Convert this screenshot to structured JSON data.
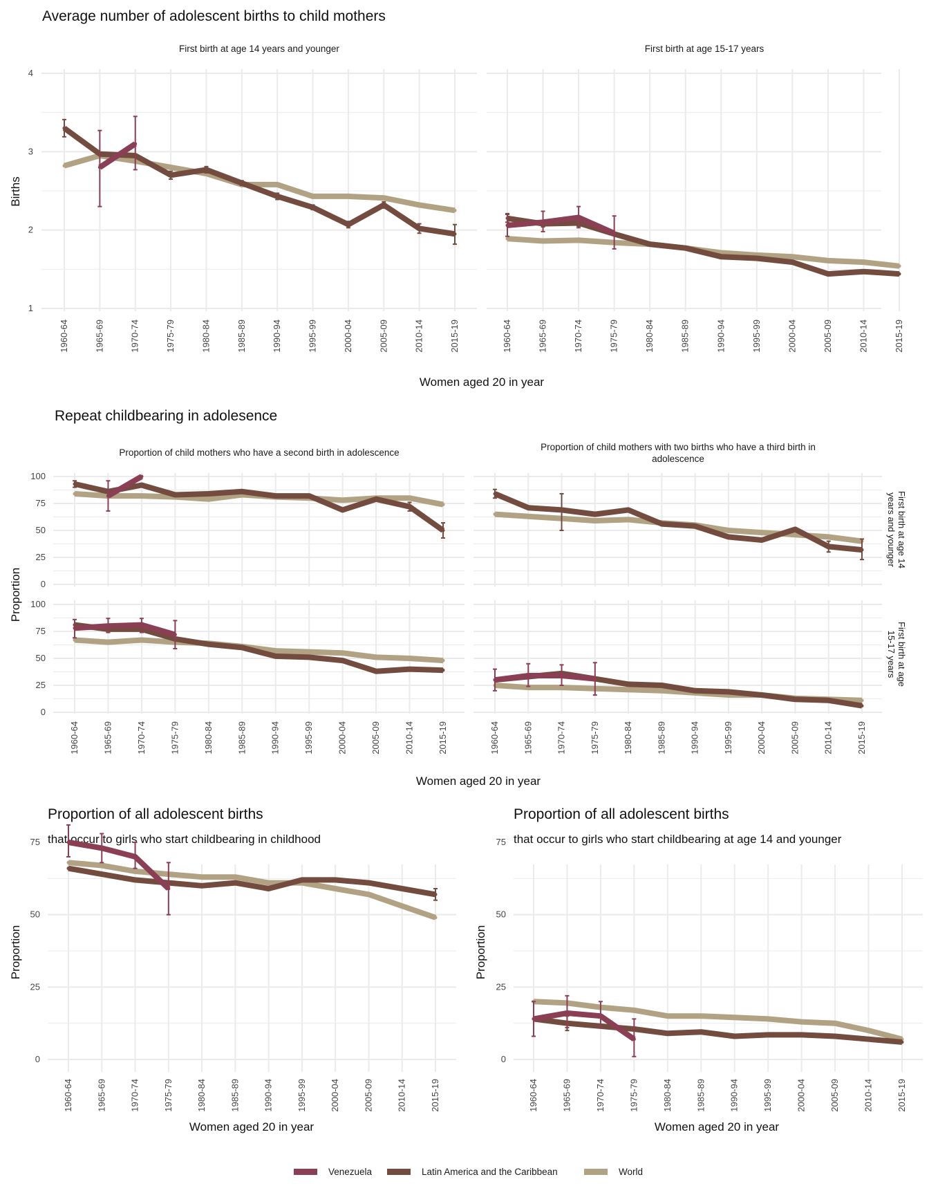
{
  "colors": {
    "Venezuela": "#8b3f55",
    "Latin America and the Caribbean": "#734c3f",
    "World": "#b1a283"
  },
  "legend": {
    "items": [
      "Venezuela",
      "Latin America and the Caribbean",
      "World"
    ]
  },
  "section1": {
    "title": "Average number of adolescent births to child mothers",
    "panels": [
      "First birth at age 14 years and younger",
      "First birth at age 15-17 years"
    ],
    "ylabel": "Births",
    "xlabel": "Women aged 20 in year"
  },
  "section2": {
    "title": "Repeat childbearing in adolesence",
    "cols": [
      "Proportion of child mothers who have a second birth in adolescence",
      "Proportion of child mothers with two births who have a third birth in",
      "adolescence"
    ],
    "rows": [
      "First birth at age 14",
      "years and younger",
      "First birth at age",
      "15-17 years"
    ],
    "ylabel": "Proportion",
    "xlabel": "Women aged 20 in year"
  },
  "section3": {
    "left_title": "Proportion of all adolescent births",
    "left_subtitle": "that occur to girls who start childbearing in childhood",
    "right_title": "Proportion of all adolescent births",
    "right_subtitle": "that occur to girls who start childbearing at age 14 and younger",
    "ylabel": "Proportion",
    "xlabel": "Women aged 20 in year"
  },
  "chart_data": [
    {
      "type": "line",
      "title": "Average number of adolescent births to child mothers",
      "panel": "First birth at age 14 years and younger",
      "categories": [
        "1960-64",
        "1965-69",
        "1970-74",
        "1975-79",
        "1980-84",
        "1985-89",
        "1990-94",
        "1995-99",
        "2000-04",
        "2005-09",
        "2010-14",
        "2015-19"
      ],
      "ylim": [
        1,
        4
      ],
      "yticks": [
        1,
        2,
        3,
        4
      ],
      "series": [
        {
          "name": "World",
          "values": [
            2.82,
            2.95,
            2.88,
            2.8,
            2.72,
            2.58,
            2.58,
            2.43,
            2.43,
            2.41,
            2.32,
            2.25
          ]
        },
        {
          "name": "Latin America and the Caribbean",
          "values": [
            3.3,
            2.97,
            2.95,
            2.7,
            2.77,
            2.6,
            2.43,
            2.29,
            2.07,
            2.32,
            2.02,
            1.95
          ],
          "err": [
            [
              3.19,
              3.41
            ],
            null,
            null,
            [
              2.65,
              2.75
            ],
            [
              2.73,
              2.81
            ],
            [
              2.57,
              2.63
            ],
            [
              2.39,
              2.47
            ],
            [
              2.26,
              2.32
            ],
            [
              2.03,
              2.11
            ],
            [
              2.28,
              2.36
            ],
            [
              1.96,
              2.08
            ],
            [
              1.82,
              2.07
            ]
          ]
        },
        {
          "name": "Venezuela",
          "values": [
            null,
            2.8,
            3.1,
            null,
            null,
            null,
            null,
            null,
            null,
            null,
            null,
            null
          ],
          "err": [
            null,
            [
              2.3,
              3.27
            ],
            [
              2.77,
              3.45
            ],
            null,
            null,
            null,
            null,
            null,
            null,
            null,
            null,
            null
          ]
        }
      ]
    },
    {
      "type": "line",
      "title": "Average number of adolescent births to child mothers",
      "panel": "First birth at age 15-17 years",
      "categories": [
        "1960-64",
        "1965-69",
        "1970-74",
        "1975-79",
        "1980-84",
        "1985-89",
        "1990-94",
        "1995-99",
        "2000-04",
        "2005-09",
        "2010-14",
        "2015-19"
      ],
      "ylim": [
        1,
        4
      ],
      "yticks": [
        1,
        2,
        3,
        4
      ],
      "series": [
        {
          "name": "World",
          "values": [
            1.89,
            1.86,
            1.87,
            1.84,
            1.82,
            1.77,
            1.71,
            1.68,
            1.66,
            1.61,
            1.59,
            1.54
          ]
        },
        {
          "name": "Latin America and the Caribbean",
          "values": [
            2.15,
            2.08,
            2.09,
            1.95,
            1.82,
            1.77,
            1.66,
            1.64,
            1.59,
            1.44,
            1.47,
            1.44
          ],
          "err": [
            [
              2.1,
              2.2
            ],
            [
              2.04,
              2.12
            ],
            [
              2.05,
              2.13
            ],
            null,
            null,
            null,
            null,
            null,
            null,
            null,
            null,
            null
          ]
        },
        {
          "name": "Venezuela",
          "values": [
            2.06,
            2.1,
            2.16,
            1.96,
            null,
            null,
            null,
            null,
            null,
            null,
            null,
            null
          ],
          "err": [
            [
              1.92,
              2.21
            ],
            [
              1.98,
              2.24
            ],
            [
              2.03,
              2.3
            ],
            [
              1.76,
              2.18
            ],
            null,
            null,
            null,
            null,
            null,
            null,
            null,
            null
          ]
        }
      ]
    },
    {
      "type": "line",
      "title": "Repeat childbearing in adolesence",
      "panel": "Proportion of child mothers who have a second birth in adolescence / First birth at age 14 years and younger",
      "categories": [
        "1960-64",
        "1965-69",
        "1970-74",
        "1975-79",
        "1980-84",
        "1985-89",
        "1990-94",
        "1995-99",
        "2000-04",
        "2005-09",
        "2010-14",
        "2015-19"
      ],
      "ylim": [
        0,
        100
      ],
      "yticks": [
        0,
        25,
        50,
        75,
        100
      ],
      "series": [
        {
          "name": "World",
          "values": [
            84,
            82,
            82,
            81,
            79,
            83,
            81,
            80,
            78,
            80,
            80,
            74
          ]
        },
        {
          "name": "Latin America and the Caribbean",
          "values": [
            93,
            86,
            92,
            83,
            84,
            86,
            82,
            82,
            69,
            79,
            72,
            50
          ],
          "err": [
            [
              90,
              96
            ],
            null,
            null,
            null,
            null,
            null,
            null,
            null,
            null,
            null,
            [
              68,
              76
            ],
            [
              43,
              57
            ]
          ]
        },
        {
          "name": "Venezuela",
          "values": [
            null,
            82,
            100,
            null,
            null,
            null,
            null,
            null,
            null,
            null,
            null,
            null
          ],
          "err": [
            null,
            [
              68,
              96
            ],
            null,
            null,
            null,
            null,
            null,
            null,
            null,
            null,
            null,
            null
          ]
        }
      ]
    },
    {
      "type": "line",
      "title": "Repeat childbearing in adolesence",
      "panel": "Proportion of child mothers with two births who have a third birth in adolescence / First birth at age 14 years and younger",
      "categories": [
        "1960-64",
        "1965-69",
        "1970-74",
        "1975-79",
        "1980-84",
        "1985-89",
        "1990-94",
        "1995-99",
        "2000-04",
        "2005-09",
        "2010-14",
        "2015-19"
      ],
      "ylim": [
        0,
        100
      ],
      "yticks": [
        0,
        25,
        50,
        75,
        100
      ],
      "series": [
        {
          "name": "World",
          "values": [
            65,
            63,
            61,
            59,
            60,
            57,
            55,
            50,
            48,
            46,
            44,
            40
          ]
        },
        {
          "name": "Latin America and the Caribbean",
          "values": [
            84,
            71,
            69,
            65,
            69,
            56,
            54,
            44,
            41,
            51,
            35,
            32
          ],
          "err": [
            [
              80,
              88
            ],
            null,
            [
              50,
              84
            ],
            null,
            null,
            null,
            null,
            null,
            null,
            null,
            [
              30,
              40
            ],
            [
              23,
              42
            ]
          ]
        }
      ]
    },
    {
      "type": "line",
      "title": "Repeat childbearing in adolesence",
      "panel": "Proportion of child mothers who have a second birth in adolescence / First birth at age 15-17 years",
      "categories": [
        "1960-64",
        "1965-69",
        "1970-74",
        "1975-79",
        "1980-84",
        "1985-89",
        "1990-94",
        "1995-99",
        "2000-04",
        "2005-09",
        "2010-14",
        "2015-19"
      ],
      "ylim": [
        0,
        100
      ],
      "yticks": [
        0,
        25,
        50,
        75,
        100
      ],
      "series": [
        {
          "name": "World",
          "values": [
            67,
            65,
            67,
            65,
            64,
            61,
            57,
            56,
            55,
            51,
            50,
            48
          ]
        },
        {
          "name": "Latin America and the Caribbean",
          "values": [
            81,
            77,
            77,
            68,
            63,
            60,
            52,
            51,
            48,
            38,
            40,
            39
          ]
        },
        {
          "name": "Venezuela",
          "values": [
            78,
            80,
            81,
            72,
            null,
            null,
            null,
            null,
            null,
            null,
            null,
            null
          ],
          "err": [
            [
              69,
              86
            ],
            [
              74,
              87
            ],
            [
              74,
              87
            ],
            [
              59,
              85
            ],
            null,
            null,
            null,
            null,
            null,
            null,
            null,
            null
          ]
        }
      ]
    },
    {
      "type": "line",
      "title": "Repeat childbearing in adolesence",
      "panel": "Proportion of child mothers with two births who have a third birth in adolescence / First birth at age 15-17 years",
      "categories": [
        "1960-64",
        "1965-69",
        "1970-74",
        "1975-79",
        "1980-84",
        "1985-89",
        "1990-94",
        "1995-99",
        "2000-04",
        "2005-09",
        "2010-14",
        "2015-19"
      ],
      "ylim": [
        0,
        100
      ],
      "yticks": [
        0,
        25,
        50,
        75,
        100
      ],
      "series": [
        {
          "name": "World",
          "values": [
            25,
            23,
            23,
            22,
            21,
            20,
            18,
            16,
            16,
            13,
            12,
            11
          ]
        },
        {
          "name": "Latin America and the Caribbean",
          "values": [
            30,
            33,
            36,
            31,
            26,
            25,
            20,
            19,
            16,
            12,
            11,
            6
          ]
        },
        {
          "name": "Venezuela",
          "values": [
            30,
            34,
            34,
            31,
            null,
            null,
            null,
            null,
            null,
            null,
            null,
            null
          ],
          "err": [
            [
              20,
              40
            ],
            [
              24,
              45
            ],
            [
              25,
              44
            ],
            [
              16,
              46
            ],
            null,
            null,
            null,
            null,
            null,
            null,
            null,
            null
          ]
        }
      ]
    },
    {
      "type": "line",
      "title": "Proportion of all adolescent births",
      "subtitle": "that occur to girls who start childbearing in childhood",
      "categories": [
        "1960-64",
        "1965-69",
        "1970-74",
        "1975-79",
        "1980-84",
        "1985-89",
        "1990-94",
        "1995-99",
        "2000-04",
        "2005-09",
        "2010-14",
        "2015-19"
      ],
      "ylim": [
        0,
        90
      ],
      "yticks": [
        0,
        25,
        50,
        75
      ],
      "series": [
        {
          "name": "World",
          "values": [
            68,
            67,
            65,
            64,
            63,
            63,
            61,
            61,
            59,
            57,
            53,
            49
          ]
        },
        {
          "name": "Latin America and the Caribbean",
          "values": [
            66,
            64,
            62,
            61,
            60,
            61,
            59,
            62,
            62,
            61,
            59,
            57
          ],
          "err": [
            null,
            null,
            null,
            null,
            null,
            null,
            null,
            null,
            null,
            null,
            null,
            [
              55,
              59
            ]
          ]
        },
        {
          "name": "Venezuela",
          "values": [
            75,
            73,
            70,
            59,
            null,
            null,
            null,
            null,
            null,
            null,
            null,
            null
          ],
          "err": [
            [
              70,
              81
            ],
            [
              68,
              78
            ],
            [
              66,
              75
            ],
            [
              50,
              68
            ],
            null,
            null,
            null,
            null,
            null,
            null,
            null,
            null
          ]
        }
      ]
    },
    {
      "type": "line",
      "title": "Proportion of all adolescent births",
      "subtitle": "that occur to girls who start childbearing at age 14 and younger",
      "categories": [
        "1960-64",
        "1965-69",
        "1970-74",
        "1975-79",
        "1980-84",
        "1985-89",
        "1990-94",
        "1995-99",
        "2000-04",
        "2005-09",
        "2010-14",
        "2015-19"
      ],
      "ylim": [
        0,
        90
      ],
      "yticks": [
        0,
        25,
        50,
        75
      ],
      "series": [
        {
          "name": "World",
          "values": [
            20,
            19.5,
            18,
            17,
            15,
            15,
            14.5,
            14,
            13,
            12.5,
            10,
            7
          ]
        },
        {
          "name": "Latin America and the Caribbean",
          "values": [
            14,
            12.5,
            11.5,
            10.5,
            9,
            9.5,
            8,
            8.5,
            8.5,
            8,
            7,
            6
          ],
          "err": [
            null,
            [
              10,
              15
            ],
            null,
            null,
            null,
            null,
            null,
            null,
            null,
            null,
            null,
            null
          ]
        },
        {
          "name": "Venezuela",
          "values": [
            14,
            16,
            15,
            7,
            null,
            null,
            null,
            null,
            null,
            null,
            null,
            null
          ],
          "err": [
            [
              8,
              20
            ],
            [
              11,
              22
            ],
            [
              11,
              20
            ],
            [
              1,
              14
            ],
            null,
            null,
            null,
            null,
            null,
            null,
            null,
            null
          ]
        }
      ]
    }
  ]
}
